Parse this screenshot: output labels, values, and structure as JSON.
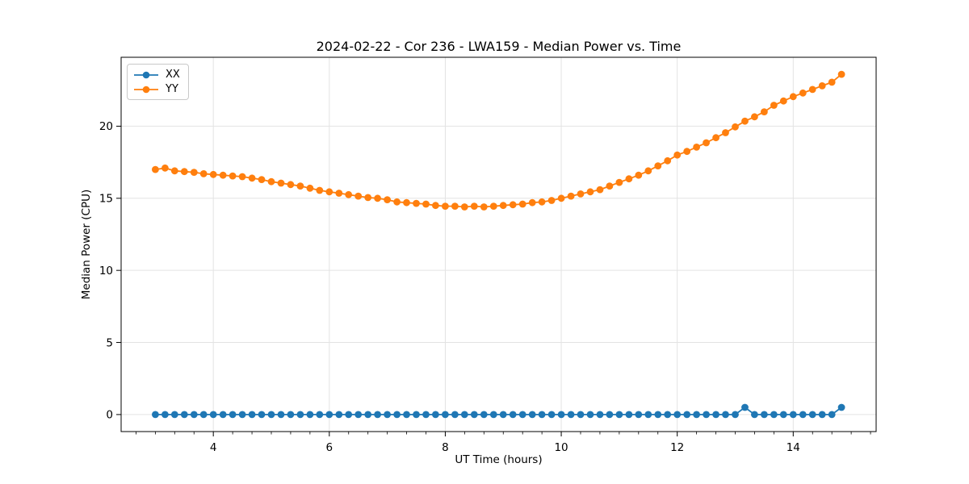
{
  "figure": {
    "title": "2024-02-22 - Cor 236 - LWA159 - Median Power vs. Time",
    "xlabel": "UT Time (hours)",
    "ylabel": "Median Power (CPU)"
  },
  "style": {
    "background": "#ffffff",
    "grid_color": "#e3e3e3",
    "spine_color": "#000000",
    "tick_color": "#000000",
    "text_color": "#000000",
    "legend_border": "#c9c9c9"
  },
  "chart_data": {
    "type": "line",
    "title": "2024-02-22 - Cor 236 - LWA159 - Median Power vs. Time",
    "xlabel": "UT Time (hours)",
    "ylabel": "Median Power (CPU)",
    "xlim": [
      2.41,
      15.43
    ],
    "ylim": [
      -1.18,
      24.78
    ],
    "xticks": [
      4,
      6,
      8,
      10,
      12,
      14
    ],
    "yticks": [
      0,
      5,
      10,
      15,
      20
    ],
    "minor_xtick_step": 0.3333,
    "grid": true,
    "legend_position": "upper left",
    "marker": "circle",
    "x": [
      3.0,
      3.167,
      3.333,
      3.5,
      3.667,
      3.833,
      4.0,
      4.167,
      4.333,
      4.5,
      4.667,
      4.833,
      5.0,
      5.167,
      5.333,
      5.5,
      5.667,
      5.833,
      6.0,
      6.167,
      6.333,
      6.5,
      6.667,
      6.833,
      7.0,
      7.167,
      7.333,
      7.5,
      7.667,
      7.833,
      8.0,
      8.167,
      8.333,
      8.5,
      8.667,
      8.833,
      9.0,
      9.167,
      9.333,
      9.5,
      9.667,
      9.833,
      10.0,
      10.167,
      10.333,
      10.5,
      10.667,
      10.833,
      11.0,
      11.167,
      11.333,
      11.5,
      11.667,
      11.833,
      12.0,
      12.167,
      12.333,
      12.5,
      12.667,
      12.833,
      13.0,
      13.167,
      13.333,
      13.5,
      13.667,
      13.833,
      14.0,
      14.167,
      14.333,
      14.5,
      14.667,
      14.833
    ],
    "series": [
      {
        "name": "XX",
        "color": "#1f77b4",
        "values": [
          0.0,
          0.0,
          0.0,
          0.0,
          0.0,
          0.0,
          0.0,
          0.0,
          0.0,
          0.0,
          0.0,
          0.0,
          0.0,
          0.0,
          0.0,
          0.0,
          0.0,
          0.0,
          0.0,
          0.0,
          0.0,
          0.0,
          0.0,
          0.0,
          0.0,
          0.0,
          0.0,
          0.0,
          0.0,
          0.0,
          0.0,
          0.0,
          0.0,
          0.0,
          0.0,
          0.0,
          0.0,
          0.0,
          0.0,
          0.0,
          0.0,
          0.0,
          0.0,
          0.0,
          0.0,
          0.0,
          0.0,
          0.0,
          0.0,
          0.0,
          0.0,
          0.0,
          0.0,
          0.0,
          0.0,
          0.0,
          0.0,
          0.0,
          0.0,
          0.0,
          0.0,
          0.5,
          0.0,
          0.0,
          0.0,
          0.0,
          0.0,
          0.0,
          0.0,
          0.0,
          0.0,
          0.5
        ]
      },
      {
        "name": "YY",
        "color": "#ff7f0e",
        "values": [
          17.0,
          17.1,
          16.9,
          16.85,
          16.8,
          16.7,
          16.65,
          16.6,
          16.55,
          16.5,
          16.4,
          16.3,
          16.15,
          16.05,
          15.95,
          15.85,
          15.7,
          15.55,
          15.45,
          15.35,
          15.25,
          15.15,
          15.05,
          15.0,
          14.9,
          14.75,
          14.7,
          14.65,
          14.6,
          14.5,
          14.45,
          14.45,
          14.4,
          14.45,
          14.4,
          14.45,
          14.5,
          14.55,
          14.6,
          14.7,
          14.75,
          14.85,
          15.0,
          15.15,
          15.3,
          15.45,
          15.6,
          15.85,
          16.1,
          16.35,
          16.6,
          16.9,
          17.25,
          17.6,
          18.0,
          18.25,
          18.55,
          18.85,
          19.2,
          19.55,
          19.95,
          20.35,
          20.65,
          21.0,
          21.45,
          21.75,
          22.05,
          22.3,
          22.55,
          22.8,
          23.05,
          23.6
        ]
      }
    ]
  }
}
